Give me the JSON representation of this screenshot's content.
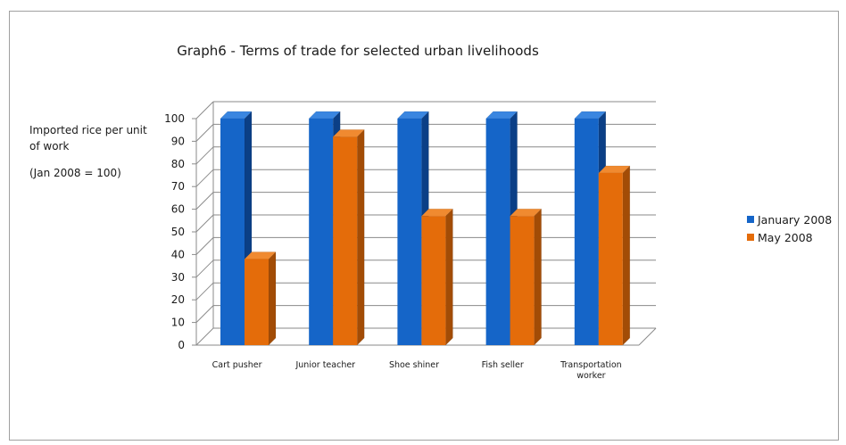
{
  "chart_data": {
    "type": "bar",
    "title": "Graph6 - Terms of trade for selected urban livelihoods",
    "ylabel": "Imported rice per unit of work",
    "ylabel_note": "(Jan 2008 = 100)",
    "categories": [
      "Cart pusher",
      "Junior teacher",
      "Shoe shiner",
      "Fish seller",
      "Transportation worker"
    ],
    "category_labels": [
      [
        "Cart pusher"
      ],
      [
        "Junior teacher"
      ],
      [
        "Shoe shiner"
      ],
      [
        "Fish seller"
      ],
      [
        "Transportation",
        "worker"
      ]
    ],
    "series": [
      {
        "name": "January 2008",
        "values": [
          100,
          100,
          100,
          100,
          100
        ]
      },
      {
        "name": "May 2008",
        "values": [
          38,
          92,
          57,
          57,
          76
        ]
      }
    ],
    "ylim": [
      0,
      100
    ],
    "yticks": [
      0,
      10,
      20,
      30,
      40,
      50,
      60,
      70,
      80,
      90,
      100
    ],
    "grid": true,
    "legend_position": "right"
  },
  "colors": {
    "jan_front": "#1565c8",
    "jan_side": "#0b3f86",
    "jan_top": "#3a86e0",
    "may_front": "#e46c0a",
    "may_side": "#a24c06",
    "may_top": "#f08a30"
  }
}
